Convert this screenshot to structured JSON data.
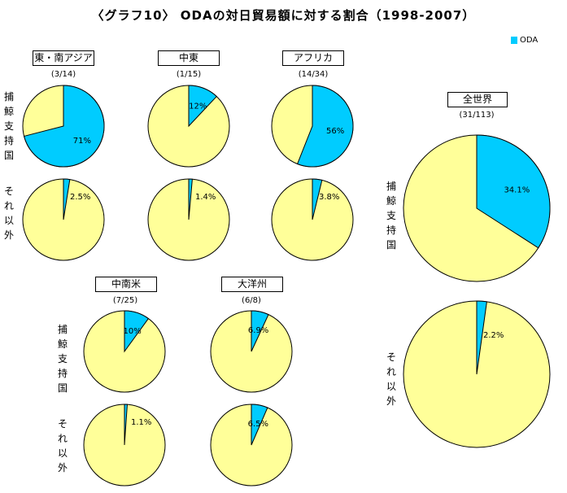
{
  "chart_data": {
    "type": "pie",
    "title": "〈グラフ10〉 ODAの対日貿易額に対する割合（1998-2007）",
    "legend": {
      "label": "ODA",
      "color": "#00CCFF",
      "placement": "top-right"
    },
    "other_color": "#FFFF99",
    "row_labels": {
      "whaling": "捕鯨支持国",
      "other": "それ以外"
    },
    "groups": [
      {
        "name": "東・南アジア",
        "count": "(3/14)",
        "whaling_pct": 71,
        "whaling_label": "71%",
        "other_pct": 2.5,
        "other_label": "2.5%"
      },
      {
        "name": "中東",
        "count": "(1/15)",
        "whaling_pct": 12,
        "whaling_label": "12%",
        "other_pct": 1.4,
        "other_label": "1.4%"
      },
      {
        "name": "アフリカ",
        "count": "(14/34)",
        "whaling_pct": 56,
        "whaling_label": "56%",
        "other_pct": 3.8,
        "other_label": "3.8%"
      },
      {
        "name": "中南米",
        "count": "(7/25)",
        "whaling_pct": 10,
        "whaling_label": "10%",
        "other_pct": 1.1,
        "other_label": "1.1%"
      },
      {
        "name": "大洋州",
        "count": "(6/8)",
        "whaling_pct": 6.9,
        "whaling_label": "6.9%",
        "other_pct": 6.5,
        "other_label": "6.5%"
      },
      {
        "name": "全世界",
        "count": "(31/113)",
        "whaling_pct": 34.1,
        "whaling_label": "34.1%",
        "other_pct": 2.2,
        "other_label": "2.2%"
      }
    ]
  }
}
